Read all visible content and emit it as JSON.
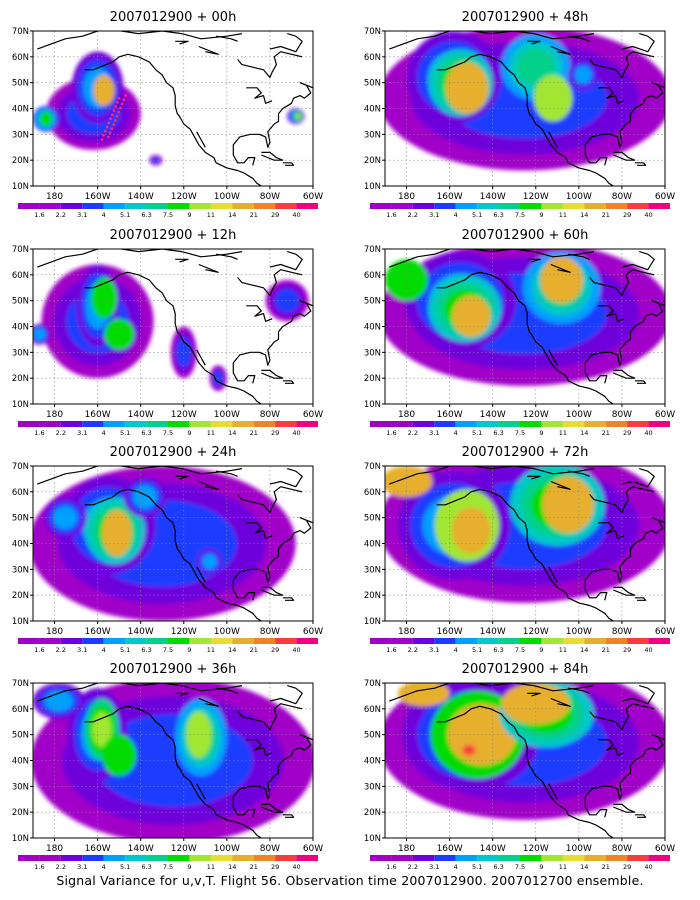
{
  "figure": {
    "caption": "Signal Variance for u,v,T. Flight 56. Observation time 2007012900. 2007012700 ensemble."
  },
  "axes": {
    "lat_labels": [
      "70N",
      "60N",
      "50N",
      "40N",
      "30N",
      "20N",
      "10N"
    ],
    "lon_labels": [
      "180",
      "160W",
      "140W",
      "120W",
      "100W",
      "80W",
      "60W"
    ]
  },
  "colorbar": {
    "labels": [
      "1.6",
      "2.2",
      "3.1",
      "4",
      "5.1",
      "6.3",
      "7.5",
      "9",
      "11",
      "14",
      "21",
      "29",
      "40"
    ],
    "colors": [
      "#a000c8",
      "#6e00dc",
      "#1e3cff",
      "#00a0ff",
      "#00c8c8",
      "#00d28c",
      "#00dc00",
      "#a0e632",
      "#e6dc32",
      "#e6af2d",
      "#f08228",
      "#fa3c3c",
      "#f00082"
    ]
  },
  "panels": [
    {
      "title": "2007012900 + 00h",
      "lead_hours": 0,
      "flight_track": true
    },
    {
      "title": "2007012900 + 48h",
      "lead_hours": 48,
      "flight_track": false
    },
    {
      "title": "2007012900 + 12h",
      "lead_hours": 12,
      "flight_track": false
    },
    {
      "title": "2007012900 + 60h",
      "lead_hours": 60,
      "flight_track": false
    },
    {
      "title": "2007012900 + 24h",
      "lead_hours": 24,
      "flight_track": false
    },
    {
      "title": "2007012900 + 72h",
      "lead_hours": 72,
      "flight_track": false
    },
    {
      "title": "2007012900 + 36h",
      "lead_hours": 36,
      "flight_track": false
    },
    {
      "title": "2007012900 + 84h",
      "lead_hours": 84,
      "flight_track": false
    }
  ]
}
